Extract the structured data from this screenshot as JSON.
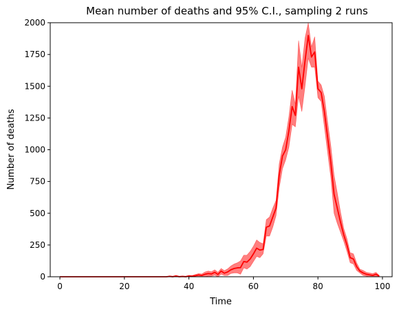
{
  "chart_data": {
    "type": "line",
    "title": "Mean number of deaths and 95% C.I., sampling 2 runs",
    "xlabel": "Time",
    "ylabel": "Number of deaths",
    "xlim": [
      -3,
      103
    ],
    "ylim": [
      0,
      2000
    ],
    "xticks": [
      0,
      20,
      40,
      60,
      80,
      100
    ],
    "yticks": [
      0,
      250,
      500,
      750,
      1000,
      1250,
      1500,
      1750,
      2000
    ],
    "grid": false,
    "legend": "none",
    "line_color": "#ff0000",
    "band_color": "#ff0000",
    "series": [
      {
        "x": [
          0,
          1,
          2,
          3,
          4,
          5,
          6,
          7,
          8,
          9,
          10,
          11,
          12,
          13,
          14,
          15,
          16,
          17,
          18,
          19,
          20,
          21,
          22,
          23,
          24,
          25,
          26,
          27,
          28,
          29,
          30,
          31,
          32,
          33,
          34,
          35,
          36,
          37,
          38,
          39,
          40,
          41,
          42,
          43,
          44,
          45,
          46,
          47,
          48,
          49,
          50,
          51,
          52,
          53,
          54,
          55,
          56,
          57,
          58,
          59,
          60,
          61,
          62,
          63,
          64,
          65,
          66,
          67,
          68,
          69,
          70,
          71,
          72,
          73,
          74,
          75,
          76,
          77,
          78,
          79,
          80,
          81,
          82,
          83,
          84,
          85,
          86,
          87,
          88,
          89,
          90,
          91,
          92,
          93,
          94,
          95,
          96,
          97,
          98,
          99
        ],
        "mean": [
          0,
          0,
          0,
          0,
          0,
          0,
          0,
          0,
          0,
          0,
          0,
          0,
          0,
          0,
          0,
          0,
          0,
          0,
          0,
          0,
          0,
          0,
          0,
          0,
          0,
          0,
          0,
          0,
          0,
          0,
          0,
          0,
          0,
          0,
          3,
          0,
          5,
          0,
          2,
          0,
          5,
          4,
          8,
          14,
          10,
          20,
          25,
          22,
          35,
          18,
          45,
          28,
          38,
          55,
          65,
          70,
          72,
          120,
          115,
          140,
          180,
          225,
          210,
          215,
          390,
          400,
          470,
          540,
          800,
          950,
          1000,
          1150,
          1340,
          1270,
          1650,
          1480,
          1700,
          1900,
          1730,
          1770,
          1480,
          1450,
          1300,
          1100,
          900,
          650,
          540,
          430,
          330,
          250,
          150,
          140,
          80,
          45,
          30,
          20,
          15,
          10,
          20,
          5
        ],
        "lower": [
          0,
          0,
          0,
          0,
          0,
          0,
          0,
          0,
          0,
          0,
          0,
          0,
          0,
          0,
          0,
          0,
          0,
          0,
          0,
          0,
          0,
          0,
          0,
          0,
          0,
          0,
          0,
          0,
          0,
          0,
          0,
          0,
          0,
          0,
          0,
          0,
          0,
          0,
          0,
          0,
          0,
          0,
          0,
          0,
          0,
          0,
          5,
          5,
          12,
          0,
          20,
          10,
          10,
          25,
          30,
          30,
          20,
          70,
          60,
          80,
          120,
          160,
          150,
          180,
          320,
          320,
          390,
          480,
          700,
          850,
          920,
          1020,
          1200,
          1180,
          1420,
          1300,
          1500,
          1720,
          1650,
          1650,
          1410,
          1380,
          1180,
          980,
          780,
          500,
          420,
          350,
          280,
          200,
          110,
          100,
          50,
          30,
          10,
          5,
          0,
          0,
          5,
          0
        ],
        "upper": [
          0,
          0,
          0,
          0,
          0,
          0,
          0,
          0,
          0,
          0,
          0,
          0,
          0,
          0,
          0,
          0,
          0,
          0,
          0,
          0,
          0,
          0,
          0,
          0,
          0,
          0,
          0,
          0,
          0,
          0,
          0,
          0,
          0,
          0,
          8,
          5,
          12,
          5,
          7,
          5,
          12,
          10,
          18,
          25,
          22,
          38,
          45,
          40,
          55,
          35,
          65,
          48,
          62,
          85,
          100,
          110,
          125,
          170,
          170,
          200,
          240,
          290,
          270,
          260,
          450,
          470,
          540,
          600,
          890,
          1020,
          1100,
          1260,
          1470,
          1360,
          1860,
          1650,
          1880,
          2000,
          1810,
          1890,
          1540,
          1510,
          1420,
          1220,
          1030,
          800,
          660,
          510,
          380,
          300,
          190,
          180,
          110,
          60,
          50,
          35,
          30,
          25,
          35,
          10
        ]
      }
    ]
  }
}
